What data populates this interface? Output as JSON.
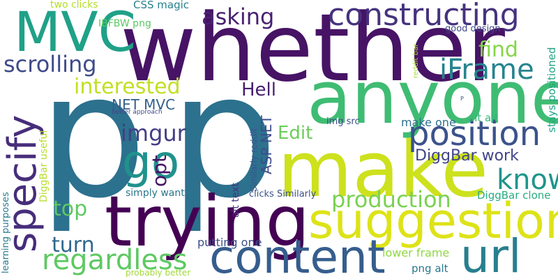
{
  "words": [
    {
      "text": "p",
      "color": "#2c718e"
    },
    {
      "text": "p",
      "color": "#2c718e"
    },
    {
      "text": "whether",
      "color": "#471365"
    },
    {
      "text": "make",
      "color": "#cde11d"
    },
    {
      "text": "anyone",
      "color": "#3fbc73"
    },
    {
      "text": "trying",
      "color": "#440154"
    },
    {
      "text": "suggestion",
      "color": "#dde318"
    },
    {
      "text": "content",
      "color": "#365d8d"
    },
    {
      "text": "MVC",
      "color": "#1fa188"
    },
    {
      "text": "specify",
      "color": "#472d7b"
    },
    {
      "text": "constructing",
      "color": "#46327e"
    },
    {
      "text": "url",
      "color": "#277f8e"
    },
    {
      "text": "go",
      "color": "#20928c"
    },
    {
      "text": "position",
      "color": "#3b528b"
    },
    {
      "text": "regardless",
      "color": "#5ec962"
    },
    {
      "text": "iFrame",
      "color": "#25848e"
    },
    {
      "text": "know",
      "color": "#1f958b"
    },
    {
      "text": "production",
      "color": "#7ad151"
    },
    {
      "text": "scrolling",
      "color": "#3e4a89"
    },
    {
      "text": "interested",
      "color": "#c2df23"
    },
    {
      "text": "asking",
      "color": "#482173"
    },
    {
      "text": "imgur",
      "color": "#433e85"
    },
    {
      "text": "turn",
      "color": "#31688e"
    },
    {
      "text": "find",
      "color": "#86d549"
    },
    {
      "text": "Hell",
      "color": "#481f70"
    },
    {
      "text": "top",
      "color": "#5ec962"
    },
    {
      "text": "Edit",
      "color": "#6ccd5a"
    },
    {
      "text": "opt",
      "color": "#481467"
    },
    {
      "text": "ASP NET",
      "color": "#3e4c8a"
    },
    {
      "text": "DiggBar work",
      "color": "#414487"
    },
    {
      "text": "NET MVC",
      "color": "#355f8d"
    },
    {
      "text": "make one",
      "color": "#2d708e"
    },
    {
      "text": "putting one",
      "color": "#3d4e8a"
    },
    {
      "text": "lower frame",
      "color": "#90d743"
    },
    {
      "text": "DiggBar clone",
      "color": "#27ad81"
    },
    {
      "text": "two clicks",
      "color": "#b5de2b"
    },
    {
      "text": "CSS magic",
      "color": "#26828e"
    },
    {
      "text": "IBFBW png",
      "color": "#5ac864"
    },
    {
      "text": "good design",
      "color": "#3f4889"
    },
    {
      "text": "simply want",
      "color": "#2a788e"
    },
    {
      "text": "png alt",
      "color": "#2a768e"
    },
    {
      "text": "img src",
      "color": "#3d4d8a"
    },
    {
      "text": "alt alt",
      "color": "#35b779"
    },
    {
      "text": "alt text",
      "color": "#46337f"
    },
    {
      "text": "clicks Similarly",
      "color": "#3b518b"
    },
    {
      "text": "Similarly reddit",
      "color": "#3a548c"
    },
    {
      "text": "DiggBar useful",
      "color": "#b8de29"
    },
    {
      "text": "learning purposes",
      "color": "#2a788e"
    },
    {
      "text": "probably better",
      "color": "#a2da37"
    },
    {
      "text": "better approach",
      "color": "#3f4788"
    },
    {
      "text": "stays positioned",
      "color": "#20a386"
    },
    {
      "text": "reddit bar",
      "color": "#a8db34"
    },
    {
      "text": "P",
      "color": "#3b528b"
    }
  ]
}
